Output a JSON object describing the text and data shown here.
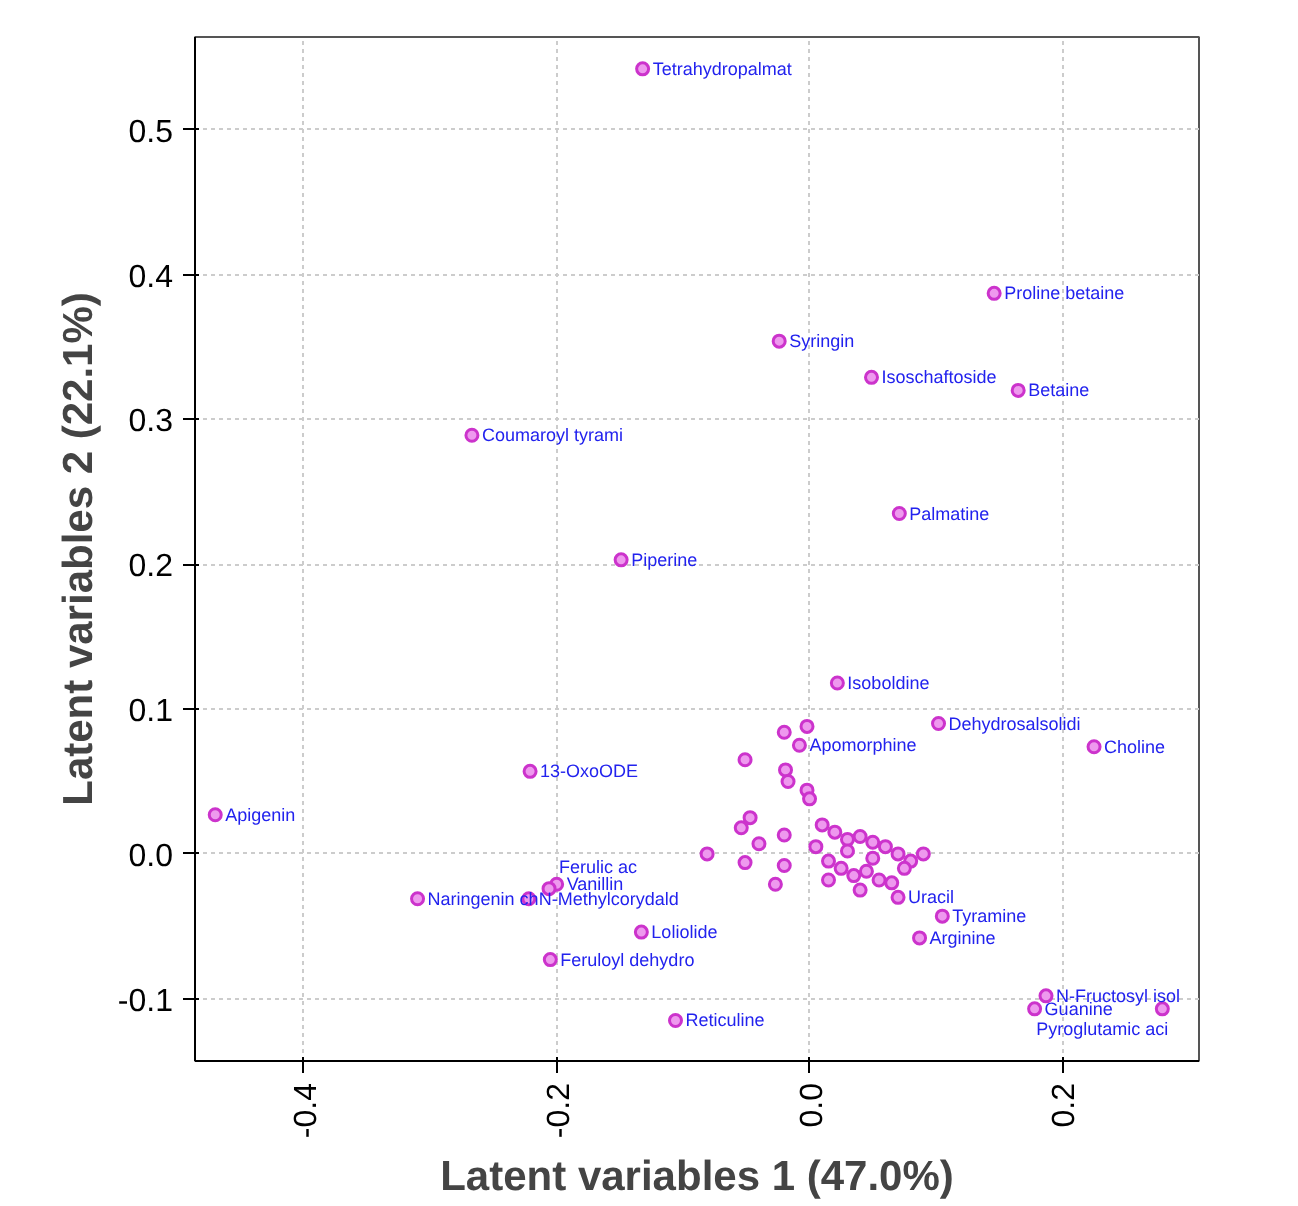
{
  "chart_data": {
    "type": "scatter",
    "xlabel": "Latent variables 1 (47.0%)",
    "ylabel": "Latent variables 2 (22.1%)",
    "xlim": [
      -0.486,
      0.308
    ],
    "ylim": [
      -0.143,
      0.564
    ],
    "xticks": [
      -0.4,
      -0.2,
      {
        "value": 0,
        "label": "0.0"
      },
      0.2
    ],
    "yticks": [
      -0.1,
      {
        "value": 0,
        "label": "0.0"
      },
      0.1,
      0.2,
      0.3,
      0.4,
      0.5
    ],
    "grid": true,
    "marker": "circle",
    "series": [
      {
        "color": "#cc33cc",
        "x": [
          -0.132,
          0.146,
          -0.024,
          0.049,
          0.165,
          -0.267,
          0.071,
          -0.149,
          -0.47,
          -0.221,
          -0.31,
          -0.222,
          -0.2,
          -0.206,
          -0.133,
          -0.205,
          -0.106,
          0.225,
          0.102,
          0.07,
          0.105,
          0.087,
          0.187,
          0.178,
          0.279,
          0.022,
          -0.002,
          -0.008,
          -0.051,
          -0.02,
          -0.019,
          -0.017,
          -0.002,
          0.0,
          -0.047,
          -0.054,
          -0.04,
          -0.081,
          -0.051,
          -0.02,
          -0.027,
          -0.02,
          0.01,
          0.02,
          0.03,
          0.04,
          0.05,
          0.06,
          0.07,
          0.08,
          0.09,
          0.005,
          0.015,
          0.025,
          0.035,
          0.045,
          0.055,
          0.065,
          0.075,
          0.03,
          0.05,
          0.015,
          0.04
        ],
        "values": [
          0.542,
          0.387,
          0.354,
          0.329,
          0.32,
          0.289,
          0.235,
          0.203,
          0.027,
          0.057,
          -0.031,
          -0.031,
          -0.021,
          -0.024,
          -0.054,
          -0.073,
          -0.115,
          0.074,
          0.09,
          -0.03,
          -0.043,
          -0.058,
          -0.098,
          -0.107,
          -0.107,
          0.118,
          0.088,
          0.075,
          0.065,
          0.084,
          0.058,
          0.05,
          0.044,
          0.038,
          0.025,
          0.018,
          0.007,
          0.0,
          -0.006,
          -0.008,
          -0.021,
          0.013,
          0.02,
          0.015,
          0.01,
          0.012,
          0.008,
          0.005,
          0.0,
          -0.005,
          0.0,
          0.005,
          -0.005,
          -0.01,
          -0.015,
          -0.012,
          -0.018,
          -0.02,
          -0.01,
          0.002,
          -0.003,
          -0.018,
          -0.025
        ]
      }
    ],
    "annotations": [
      {
        "text": "Tetrahydropalmat",
        "x": -0.132,
        "y": 0.542
      },
      {
        "text": "Proline betaine",
        "x": 0.146,
        "y": 0.387
      },
      {
        "text": "Syringin",
        "x": -0.024,
        "y": 0.354
      },
      {
        "text": "Isoschaftoside",
        "x": 0.049,
        "y": 0.329
      },
      {
        "text": "Betaine",
        "x": 0.165,
        "y": 0.32
      },
      {
        "text": "Coumaroyl tyrami",
        "x": -0.267,
        "y": 0.289
      },
      {
        "text": "Palmatine",
        "x": 0.071,
        "y": 0.235
      },
      {
        "text": "Piperine",
        "x": -0.149,
        "y": 0.203
      },
      {
        "text": "Apigenin",
        "x": -0.47,
        "y": 0.027
      },
      {
        "text": "13-OxoODE",
        "x": -0.221,
        "y": 0.057
      },
      {
        "text": "Naringenin ch",
        "x": -0.31,
        "y": -0.031
      },
      {
        "text": "N-Methylcorydald",
        "x": -0.222,
        "y": -0.031
      },
      {
        "text": "Vanillin",
        "x": -0.2,
        "y": -0.021
      },
      {
        "text": "Ferulic ac",
        "x": -0.206,
        "y": -0.024
      },
      {
        "text": "Loliolide",
        "x": -0.133,
        "y": -0.054
      },
      {
        "text": "Feruloyl dehydro",
        "x": -0.205,
        "y": -0.073
      },
      {
        "text": "Reticuline",
        "x": -0.106,
        "y": -0.115
      },
      {
        "text": "Choline",
        "x": 0.225,
        "y": 0.074
      },
      {
        "text": "Dehydrosalsolidi",
        "x": 0.102,
        "y": 0.09
      },
      {
        "text": "Uracil",
        "x": 0.07,
        "y": -0.03
      },
      {
        "text": "Tyramine",
        "x": 0.105,
        "y": -0.043
      },
      {
        "text": "Arginine",
        "x": 0.087,
        "y": -0.058
      },
      {
        "text": "N-Fructosyl isol",
        "x": 0.187,
        "y": -0.098
      },
      {
        "text": "Guanine",
        "x": 0.178,
        "y": -0.107
      },
      {
        "text": "Pyroglutamic aci",
        "x": 0.279,
        "y": -0.107
      },
      {
        "text": "Isoboldine",
        "x": 0.022,
        "y": 0.118
      },
      {
        "text": "Apomorphine",
        "x": -0.008,
        "y": 0.075
      }
    ]
  }
}
